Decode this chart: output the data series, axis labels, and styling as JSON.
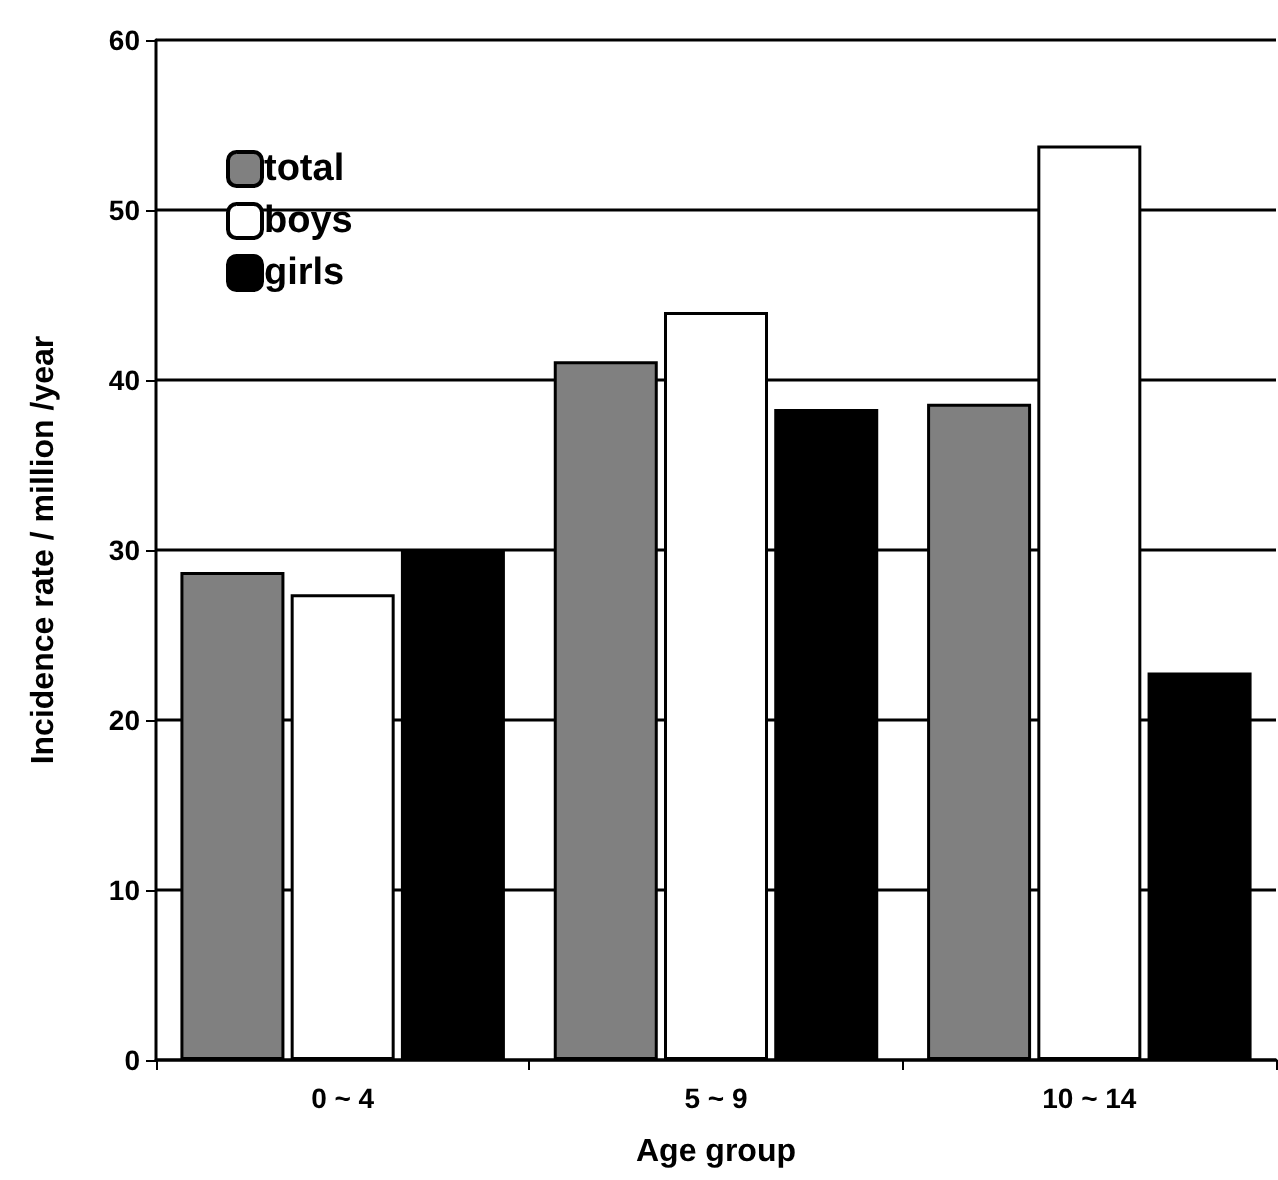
{
  "chart_data": {
    "type": "bar",
    "xlabel": "Age group",
    "ylabel": "Incidence rate / million /year",
    "categories": [
      "0 ~ 4",
      "5 ~ 9",
      "10 ~ 14"
    ],
    "series": [
      {
        "name": "total",
        "color": "#808080",
        "values": [
          28.7,
          41.1,
          38.6
        ]
      },
      {
        "name": "boys",
        "color": "#ffffff",
        "values": [
          27.4,
          44.0,
          53.8
        ]
      },
      {
        "name": "girls",
        "color": "#000000",
        "values": [
          30.0,
          38.3,
          22.8
        ]
      }
    ],
    "ylim": [
      0,
      60
    ],
    "yticks": [
      0,
      10,
      20,
      30,
      40,
      50,
      60
    ],
    "grid": "y",
    "legend": "top left"
  }
}
